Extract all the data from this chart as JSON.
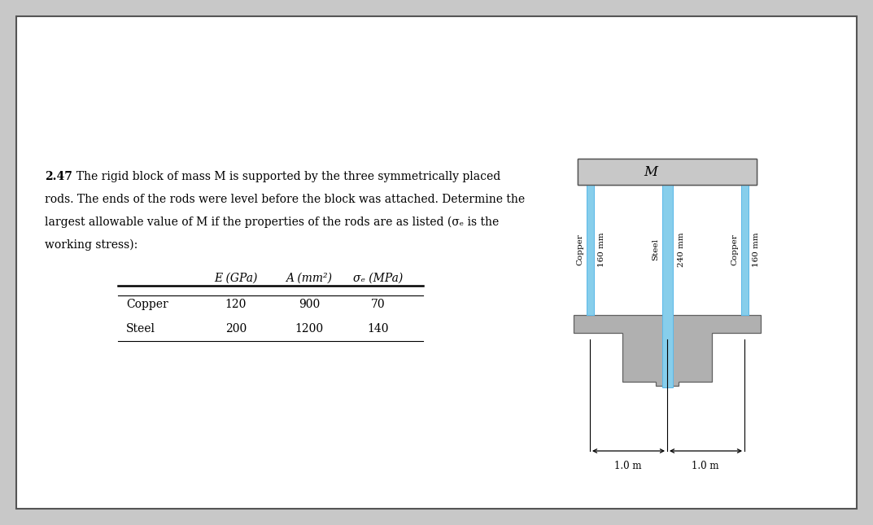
{
  "bg_color": "#c8c8c8",
  "page_color": "#ffffff",
  "problem_number": "2.47",
  "line1": "  The rigid block of mass M is supported by the three symmetrically placed",
  "line2": "rods. The ends of the rods were level before the block was attached. Determine the",
  "line3": "largest allowable value of M if the properties of the rods are as listed (σₑ is the",
  "line4": "working stress):",
  "col_headers": [
    "E (GPa)",
    "A (mm²)",
    "σₑ (MPa)"
  ],
  "row_labels": [
    "Copper",
    "Steel"
  ],
  "row_E": [
    "120",
    "200"
  ],
  "row_A": [
    "900",
    "1200"
  ],
  "row_sigma": [
    "70",
    "140"
  ],
  "block_color": "#c8c8c8",
  "block_label": "M",
  "rod_color": "#87ceeb",
  "rod_edge_color": "#5bb8e8",
  "base_color": "#b0b0b0",
  "base_edge_color": "#606060",
  "dim_text_left": "←1.0 m→",
  "dim_text_right": "←1.0 m→",
  "rod_labels_left": [
    "Copper",
    "160 mm"
  ],
  "rod_labels_center": [
    "Steel",
    "240 mm"
  ],
  "rod_labels_right": [
    "Copper",
    "160 mm"
  ]
}
